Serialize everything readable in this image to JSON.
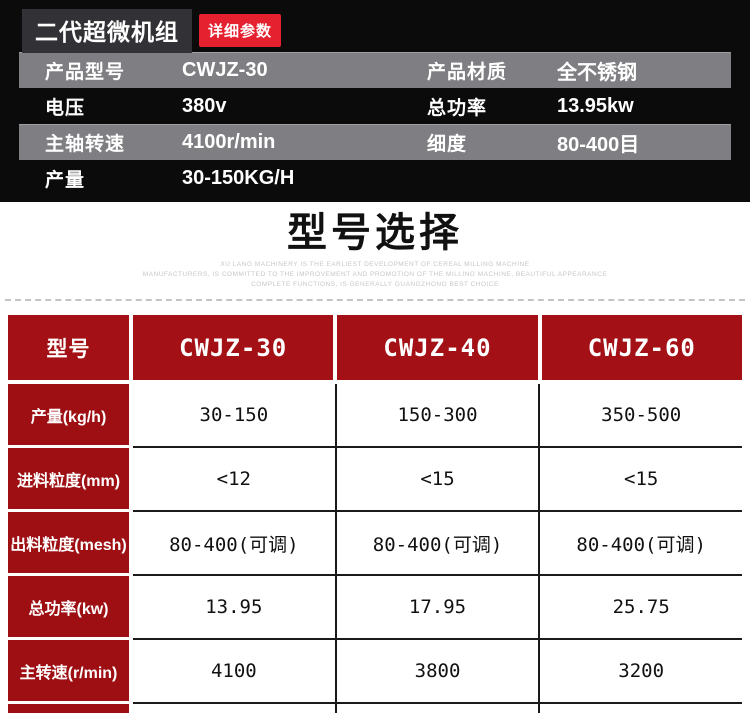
{
  "colors": {
    "panel_bg": "#0b0b0b",
    "title_box_bg": "#323236",
    "badge_red": "#e6212f",
    "spec_bar_gray": "#7f7f83",
    "table_header_red": "#a31015",
    "table_label_red": "#9e0f13",
    "table_border": "#1a1a1a"
  },
  "header": {
    "title": "二代超微机组",
    "badge": "详细参数"
  },
  "specs": {
    "rows": [
      {
        "label1": "产品型号",
        "value1": "CWJZ-30",
        "label2": "产品材质",
        "value2": "全不锈钢"
      },
      {
        "label1": "电压",
        "value1": "380v",
        "label2": "总功率",
        "value2": "13.95kw"
      },
      {
        "label1": "主轴转速",
        "value1": "4100r/min",
        "label2": "细度",
        "value2": "80-400目"
      },
      {
        "label1": "产量",
        "value1": "30-150KG/H",
        "label2": "",
        "value2": ""
      }
    ]
  },
  "section": {
    "title": "型号选择",
    "tagline_lines": [
      "XU LANG MACHINERY IS THE EARLIEST DEVELOPMENT OF CEREAL MILLING MACHINE",
      "MANUFACTURERS, IS COMMITTED TO THE IMPROVEMENT AND PROMOTION OF THE MILLING MACHINE, BEAUTIFUL APPEARANCE",
      "COMPLETE FUNCTIONS, IS GENERALLY GUANGZHONG BEST CHOICE"
    ]
  },
  "model_table": {
    "header": [
      "型号",
      "CWJZ-30",
      "CWJZ-40",
      "CWJZ-60"
    ],
    "rows": [
      {
        "label": "产量(kg/h)",
        "values": [
          "30-150",
          "150-300",
          "350-500"
        ]
      },
      {
        "label": "进料粒度(mm)",
        "values": [
          "<12",
          "<15",
          "<15"
        ]
      },
      {
        "label": "出料粒度(mesh)",
        "values": [
          "80-400(可调)",
          "80-400(可调)",
          "80-400(可调)"
        ]
      },
      {
        "label": "总功率(kw)",
        "values": [
          "13.95",
          "17.95",
          "25.75"
        ]
      },
      {
        "label": "主转速(r/min)",
        "values": [
          "4100",
          "3800",
          "3200"
        ]
      }
    ]
  }
}
